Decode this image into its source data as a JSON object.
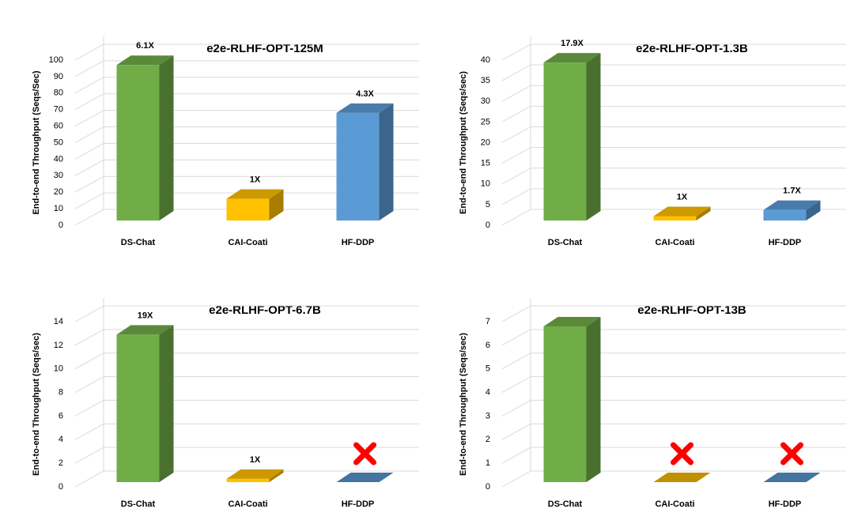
{
  "chart_data": [
    {
      "type": "bar3d",
      "title": "e2e-RLHF-OPT-125M",
      "y_label": "End-to-end Throughput (Seqs/Sec)",
      "categories": [
        "DS-Chat",
        "CAI-Coati",
        "HF-DDP"
      ],
      "values": [
        97,
        16,
        68
      ],
      "annotations": [
        "6.1X",
        "1X",
        "4.3X"
      ],
      "colors": [
        "#70ad47",
        "#ffc000",
        "#5b9bd5"
      ],
      "ylim": [
        0,
        100
      ],
      "yticks": [
        0,
        10,
        20,
        30,
        40,
        50,
        60,
        70,
        80,
        90,
        100
      ],
      "grid": true
    },
    {
      "type": "bar3d",
      "title": "e2e-RLHF-OPT-1.3B",
      "y_label": "End-to-end Throughput (Seqs/sec)",
      "categories": [
        "DS-Chat",
        "CAI-Coati",
        "HF-DDP"
      ],
      "values": [
        39.4,
        2.2,
        3.7
      ],
      "annotations": [
        "17.9X",
        "1X",
        "1.7X"
      ],
      "colors": [
        "#70ad47",
        "#ffc000",
        "#5b9bd5"
      ],
      "ylim": [
        0,
        40
      ],
      "yticks": [
        0,
        5,
        10,
        15,
        20,
        25,
        30,
        35,
        40
      ],
      "grid": true
    },
    {
      "type": "bar3d",
      "title": "e2e-RLHF-OPT-6.7B",
      "y_label": "End-to-end Throughput (Seqs/sec)",
      "categories": [
        "DS-Chat",
        "CAI-Coati",
        "HF-DDP"
      ],
      "values": [
        12.9,
        0.68,
        null
      ],
      "annotations": [
        "19X",
        "1X",
        null
      ],
      "colors": [
        "#70ad47",
        "#ffc000",
        "#5b9bd5"
      ],
      "ylim": [
        0,
        14
      ],
      "yticks": [
        0,
        2,
        4,
        6,
        8,
        10,
        12,
        14
      ],
      "grid": true
    },
    {
      "type": "bar3d",
      "title": "e2e-RLHF-OPT-13B",
      "y_label": "End-to-end Throughput (Seqs/sec)",
      "categories": [
        "DS-Chat",
        "CAI-Coati",
        "HF-DDP"
      ],
      "values": [
        6.8,
        null,
        null
      ],
      "colors": [
        "#70ad47",
        "#ffc000",
        "#5b9bd5"
      ],
      "ylim": [
        0,
        7
      ],
      "yticks": [
        0,
        1,
        2,
        3,
        4,
        5,
        6,
        7
      ],
      "grid": true
    }
  ]
}
